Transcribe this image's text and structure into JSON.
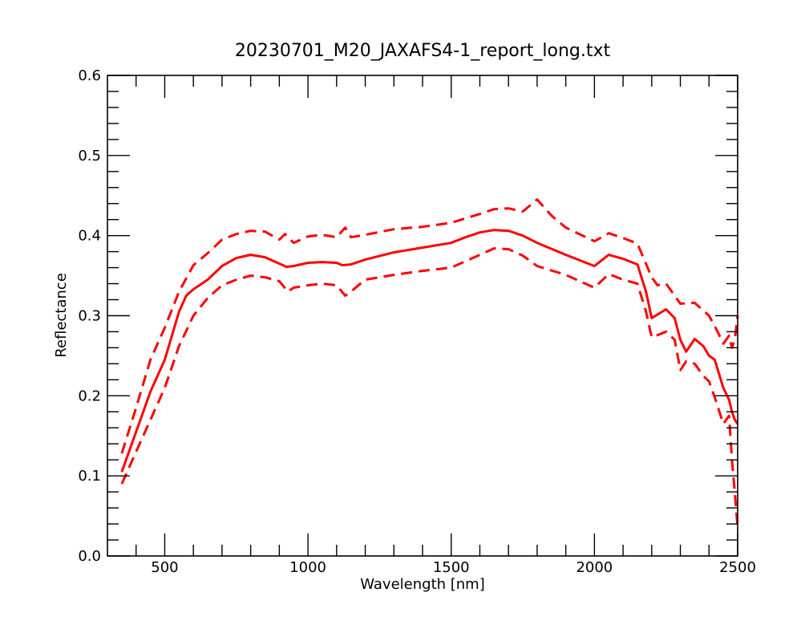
{
  "chart_data": {
    "type": "line",
    "title": "20230701_M20_JAXAFS4-1_report_long.txt",
    "xlabel": "Wavelength [nm]",
    "ylabel": "Reflectance",
    "xlim": [
      300,
      2500
    ],
    "ylim": [
      0.0,
      0.6
    ],
    "x_ticks": [
      "500",
      "1000",
      "1500",
      "2000",
      "2500"
    ],
    "y_ticks": [
      "0.0",
      "0.1",
      "0.2",
      "0.3",
      "0.4",
      "0.5",
      "0.6"
    ],
    "grid": false,
    "legend": "none",
    "color": "#ff0000",
    "series": [
      {
        "style": "solid",
        "x": [
          350,
          400,
          450,
          500,
          550,
          575,
          600,
          650,
          700,
          750,
          800,
          850,
          900,
          925,
          950,
          1000,
          1050,
          1100,
          1120,
          1150,
          1200,
          1300,
          1400,
          1500,
          1550,
          1600,
          1650,
          1700,
          1750,
          1800,
          1900,
          2000,
          2050,
          2100,
          2150,
          2180,
          2200,
          2250,
          2280,
          2300,
          2320,
          2350,
          2380,
          2400,
          2420,
          2450,
          2470,
          2480,
          2490,
          2500
        ],
        "y": [
          0.105,
          0.155,
          0.205,
          0.245,
          0.305,
          0.325,
          0.333,
          0.345,
          0.362,
          0.372,
          0.376,
          0.373,
          0.365,
          0.361,
          0.362,
          0.366,
          0.367,
          0.366,
          0.363,
          0.364,
          0.37,
          0.379,
          0.385,
          0.391,
          0.398,
          0.404,
          0.407,
          0.406,
          0.4,
          0.391,
          0.376,
          0.362,
          0.376,
          0.371,
          0.364,
          0.33,
          0.297,
          0.308,
          0.297,
          0.27,
          0.255,
          0.271,
          0.262,
          0.25,
          0.245,
          0.21,
          0.195,
          0.18,
          0.17,
          0.165
        ]
      },
      {
        "style": "dashed",
        "x": [
          350,
          400,
          450,
          500,
          550,
          600,
          650,
          700,
          750,
          800,
          850,
          900,
          920,
          950,
          1000,
          1050,
          1100,
          1130,
          1150,
          1200,
          1300,
          1400,
          1500,
          1600,
          1650,
          1700,
          1750,
          1800,
          1850,
          1900,
          2000,
          2050,
          2100,
          2150,
          2200,
          2220,
          2250,
          2300,
          2350,
          2400,
          2430,
          2450,
          2470,
          2480,
          2490,
          2500
        ],
        "y": [
          0.128,
          0.185,
          0.245,
          0.285,
          0.33,
          0.363,
          0.378,
          0.395,
          0.402,
          0.406,
          0.405,
          0.395,
          0.402,
          0.391,
          0.399,
          0.401,
          0.398,
          0.41,
          0.398,
          0.401,
          0.408,
          0.411,
          0.416,
          0.427,
          0.433,
          0.434,
          0.43,
          0.445,
          0.425,
          0.41,
          0.393,
          0.403,
          0.397,
          0.39,
          0.348,
          0.338,
          0.34,
          0.315,
          0.316,
          0.3,
          0.28,
          0.265,
          0.275,
          0.26,
          0.27,
          0.3
        ]
      },
      {
        "style": "dashed",
        "x": [
          350,
          400,
          450,
          500,
          550,
          600,
          650,
          700,
          750,
          800,
          850,
          900,
          930,
          950,
          1000,
          1050,
          1100,
          1130,
          1150,
          1200,
          1300,
          1400,
          1500,
          1600,
          1650,
          1700,
          1750,
          1800,
          1900,
          2000,
          2050,
          2100,
          2150,
          2180,
          2200,
          2250,
          2280,
          2300,
          2320,
          2350,
          2380,
          2400,
          2420,
          2450,
          2470,
          2480,
          2490,
          2500
        ],
        "y": [
          0.09,
          0.13,
          0.17,
          0.21,
          0.262,
          0.3,
          0.322,
          0.338,
          0.345,
          0.35,
          0.348,
          0.343,
          0.33,
          0.335,
          0.338,
          0.34,
          0.338,
          0.325,
          0.33,
          0.345,
          0.351,
          0.356,
          0.36,
          0.376,
          0.384,
          0.383,
          0.375,
          0.362,
          0.351,
          0.335,
          0.352,
          0.345,
          0.34,
          0.305,
          0.273,
          0.28,
          0.27,
          0.232,
          0.243,
          0.24,
          0.225,
          0.218,
          0.198,
          0.165,
          0.175,
          0.12,
          0.08,
          0.035
        ]
      }
    ]
  }
}
